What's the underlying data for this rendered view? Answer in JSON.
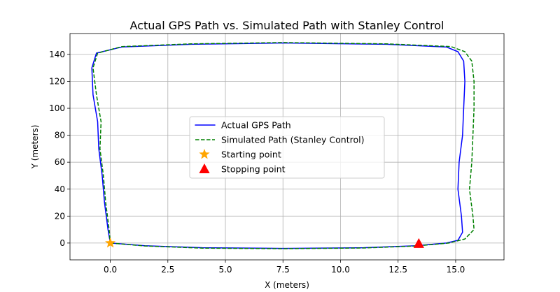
{
  "chart_data": {
    "type": "line",
    "title": "Actual GPS Path vs. Simulated Path with Stanley Control",
    "xlabel": "X (meters)",
    "ylabel": "Y (meters)",
    "xlim": [
      -1.75,
      17.1
    ],
    "ylim": [
      -12.5,
      155.5
    ],
    "xticks": [
      0.0,
      2.5,
      5.0,
      7.5,
      10.0,
      12.5,
      15.0
    ],
    "xtick_labels": [
      "0.0",
      "2.5",
      "5.0",
      "7.5",
      "10.0",
      "12.5",
      "15.0"
    ],
    "yticks": [
      0,
      20,
      40,
      60,
      80,
      100,
      120,
      140
    ],
    "ytick_labels": [
      "0",
      "20",
      "40",
      "60",
      "80",
      "100",
      "120",
      "140"
    ],
    "grid": true,
    "legend_position": "center",
    "series": [
      {
        "name": "Actual GPS Path",
        "style": "solid",
        "color": "#0000ff",
        "x": [
          0.0,
          1.5,
          4.0,
          7.5,
          11.0,
          13.3,
          14.6,
          15.1,
          15.3,
          15.25,
          15.1,
          15.15,
          15.3,
          15.35,
          15.4,
          15.35,
          15.1,
          14.6,
          12.0,
          7.5,
          3.5,
          0.5,
          -0.6,
          -0.8,
          -0.75,
          -0.55,
          -0.5,
          -0.35,
          -0.25,
          -0.1,
          0.0
        ],
        "y": [
          0,
          -2,
          -3.5,
          -4,
          -3.5,
          -2,
          0,
          2,
          8,
          20,
          40,
          60,
          80,
          100,
          120,
          135,
          142,
          145.5,
          147.5,
          148.5,
          147.5,
          145.5,
          141,
          130,
          110,
          90,
          70,
          50,
          30,
          10,
          0
        ]
      },
      {
        "name": "Simulated Path (Stanley Control)",
        "style": "dashed",
        "color": "#008000",
        "x": [
          0.0,
          1.5,
          4.0,
          7.5,
          11.0,
          13.3,
          14.7,
          15.4,
          15.8,
          15.75,
          15.6,
          15.7,
          15.75,
          15.8,
          15.8,
          15.7,
          15.4,
          14.8,
          12.0,
          7.5,
          3.5,
          0.5,
          -0.55,
          -0.75,
          -0.6,
          -0.4,
          -0.45,
          -0.3,
          -0.2,
          -0.05,
          0.0
        ],
        "y": [
          0,
          -2.2,
          -3.8,
          -4.2,
          -3.7,
          -2.2,
          0,
          3,
          10,
          20,
          40,
          60,
          80,
          100,
          120,
          135,
          142,
          145.8,
          147.8,
          148.8,
          147.8,
          145.8,
          141,
          130,
          110,
          90,
          70,
          50,
          30,
          10,
          0
        ]
      }
    ],
    "markers": [
      {
        "name": "Starting point",
        "shape": "star",
        "color": "#ffa500",
        "x": 0.0,
        "y": 0.0
      },
      {
        "name": "Stopping point",
        "shape": "triangle",
        "color": "#ff0000",
        "x": 13.4,
        "y": -0.5
      }
    ]
  }
}
